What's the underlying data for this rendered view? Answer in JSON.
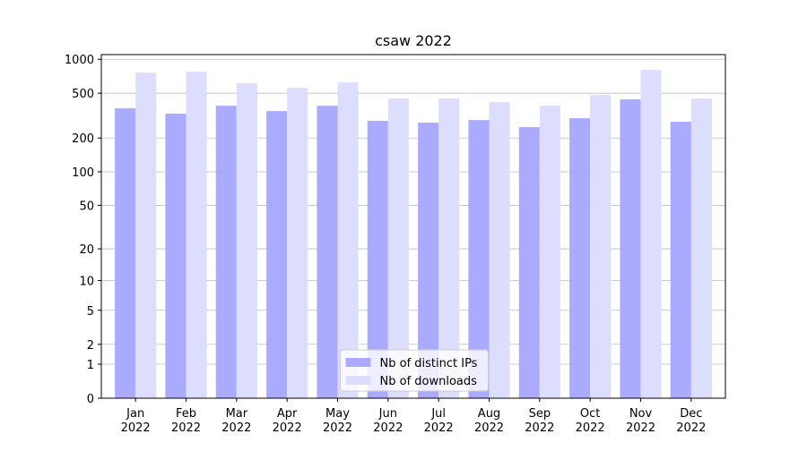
{
  "chart_data": {
    "type": "bar",
    "title": "csaw 2022",
    "categories": [
      [
        "Jan",
        "2022"
      ],
      [
        "Feb",
        "2022"
      ],
      [
        "Mar",
        "2022"
      ],
      [
        "Apr",
        "2022"
      ],
      [
        "May",
        "2022"
      ],
      [
        "Jun",
        "2022"
      ],
      [
        "Jul",
        "2022"
      ],
      [
        "Aug",
        "2022"
      ],
      [
        "Sep",
        "2022"
      ],
      [
        "Oct",
        "2022"
      ],
      [
        "Nov",
        "2022"
      ],
      [
        "Dec",
        "2022"
      ]
    ],
    "series": [
      {
        "name": "Nb of distinct IPs",
        "color": "#aaaaff",
        "values": [
          367,
          329,
          387,
          347,
          387,
          284,
          274,
          289,
          250,
          300,
          441,
          279
        ]
      },
      {
        "name": "Nb of downloads",
        "color": "#ddddff",
        "values": [
          761,
          776,
          612,
          558,
          623,
          448,
          448,
          417,
          387,
          482,
          805,
          448
        ]
      }
    ],
    "yscale": "log1p",
    "ylim": [
      0,
      1100
    ],
    "yticks": [
      0,
      1,
      2,
      5,
      10,
      20,
      50,
      100,
      200,
      500,
      1000
    ],
    "grid": true,
    "legend": "lower center"
  }
}
